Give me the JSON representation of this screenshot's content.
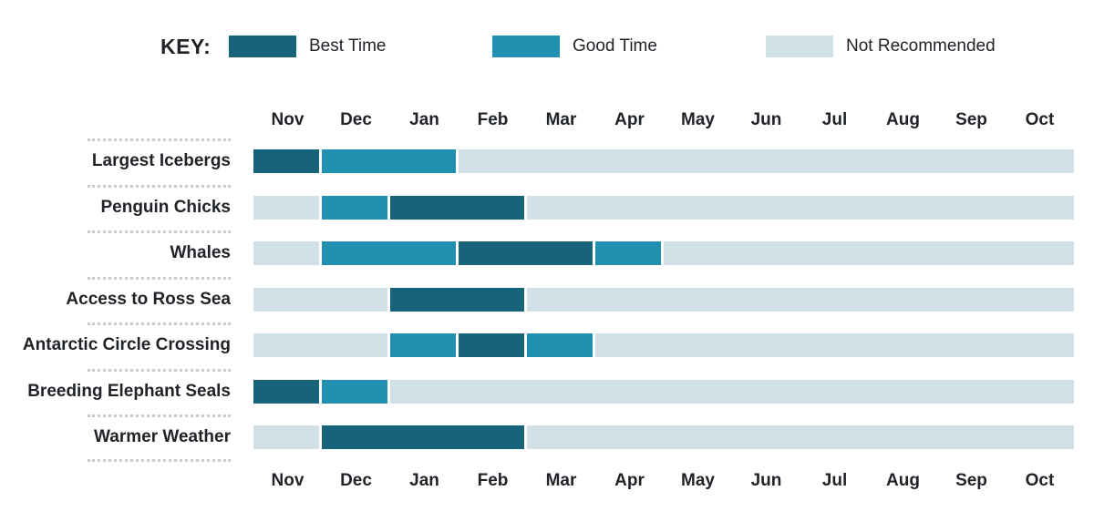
{
  "legend": {
    "key_label": "KEY:",
    "items": [
      {
        "label": "Best Time",
        "color": "#17637a"
      },
      {
        "label": "Good Time",
        "color": "#218faf"
      },
      {
        "label": "Not Recommended",
        "color": "#d1dfe7"
      }
    ]
  },
  "chart_data": {
    "type": "gantt",
    "months": [
      "Nov",
      "Dec",
      "Jan",
      "Feb",
      "Mar",
      "Apr",
      "May",
      "Jun",
      "Jul",
      "Aug",
      "Sep",
      "Oct"
    ],
    "colors": {
      "best": "#17637a",
      "good": "#218faf",
      "not": "#d1dfe7"
    },
    "rows": [
      {
        "label": "Largest Icebergs",
        "ratings": [
          "best",
          "good",
          "good",
          "not",
          "not",
          "not",
          "not",
          "not",
          "not",
          "not",
          "not",
          "not"
        ]
      },
      {
        "label": "Penguin Chicks",
        "ratings": [
          "not",
          "good",
          "best",
          "best",
          "not",
          "not",
          "not",
          "not",
          "not",
          "not",
          "not",
          "not"
        ]
      },
      {
        "label": "Whales",
        "ratings": [
          "not",
          "good",
          "good",
          "best",
          "best",
          "good",
          "not",
          "not",
          "not",
          "not",
          "not",
          "not"
        ]
      },
      {
        "label": "Access to Ross Sea",
        "ratings": [
          "not",
          "not",
          "best",
          "best",
          "not",
          "not",
          "not",
          "not",
          "not",
          "not",
          "not",
          "not"
        ]
      },
      {
        "label": "Antarctic Circle Crossing",
        "ratings": [
          "not",
          "not",
          "good",
          "best",
          "good",
          "not",
          "not",
          "not",
          "not",
          "not",
          "not",
          "not"
        ]
      },
      {
        "label": "Breeding Elephant Seals",
        "ratings": [
          "best",
          "good",
          "not",
          "not",
          "not",
          "not",
          "not",
          "not",
          "not",
          "not",
          "not",
          "not"
        ]
      },
      {
        "label": "Warmer Weather",
        "ratings": [
          "not",
          "best",
          "best",
          "best",
          "not",
          "not",
          "not",
          "not",
          "not",
          "not",
          "not",
          "not"
        ]
      }
    ]
  }
}
